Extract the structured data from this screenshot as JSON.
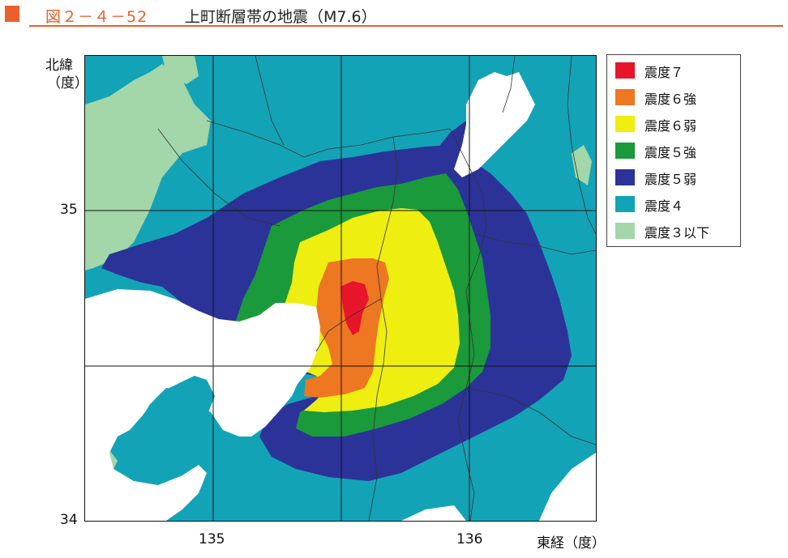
{
  "title": {
    "number": "図２－４－52",
    "text": "上町断層帯の地震（M7.6）"
  },
  "axes": {
    "y_unit": "北緯\n（度）",
    "y_ticks": [
      "35",
      "34"
    ],
    "x_ticks": [
      "135",
      "136"
    ],
    "x_unit": "東経（度）"
  },
  "legend": {
    "items": [
      {
        "label": "震度７",
        "color": "#e8142a"
      },
      {
        "label": "震度６強",
        "color": "#ee7722"
      },
      {
        "label": "震度６弱",
        "color": "#eeee11"
      },
      {
        "label": "震度５強",
        "color": "#1a9a3a"
      },
      {
        "label": "震度５弱",
        "color": "#2b3399"
      },
      {
        "label": "震度４",
        "color": "#13a3b7"
      },
      {
        "label": "震度３以下",
        "color": "#a3d6a8"
      }
    ]
  },
  "colors": {
    "sea": "#ffffff",
    "grid": "#111111",
    "boundary": "#333333",
    "accent": "#e8602c"
  }
}
